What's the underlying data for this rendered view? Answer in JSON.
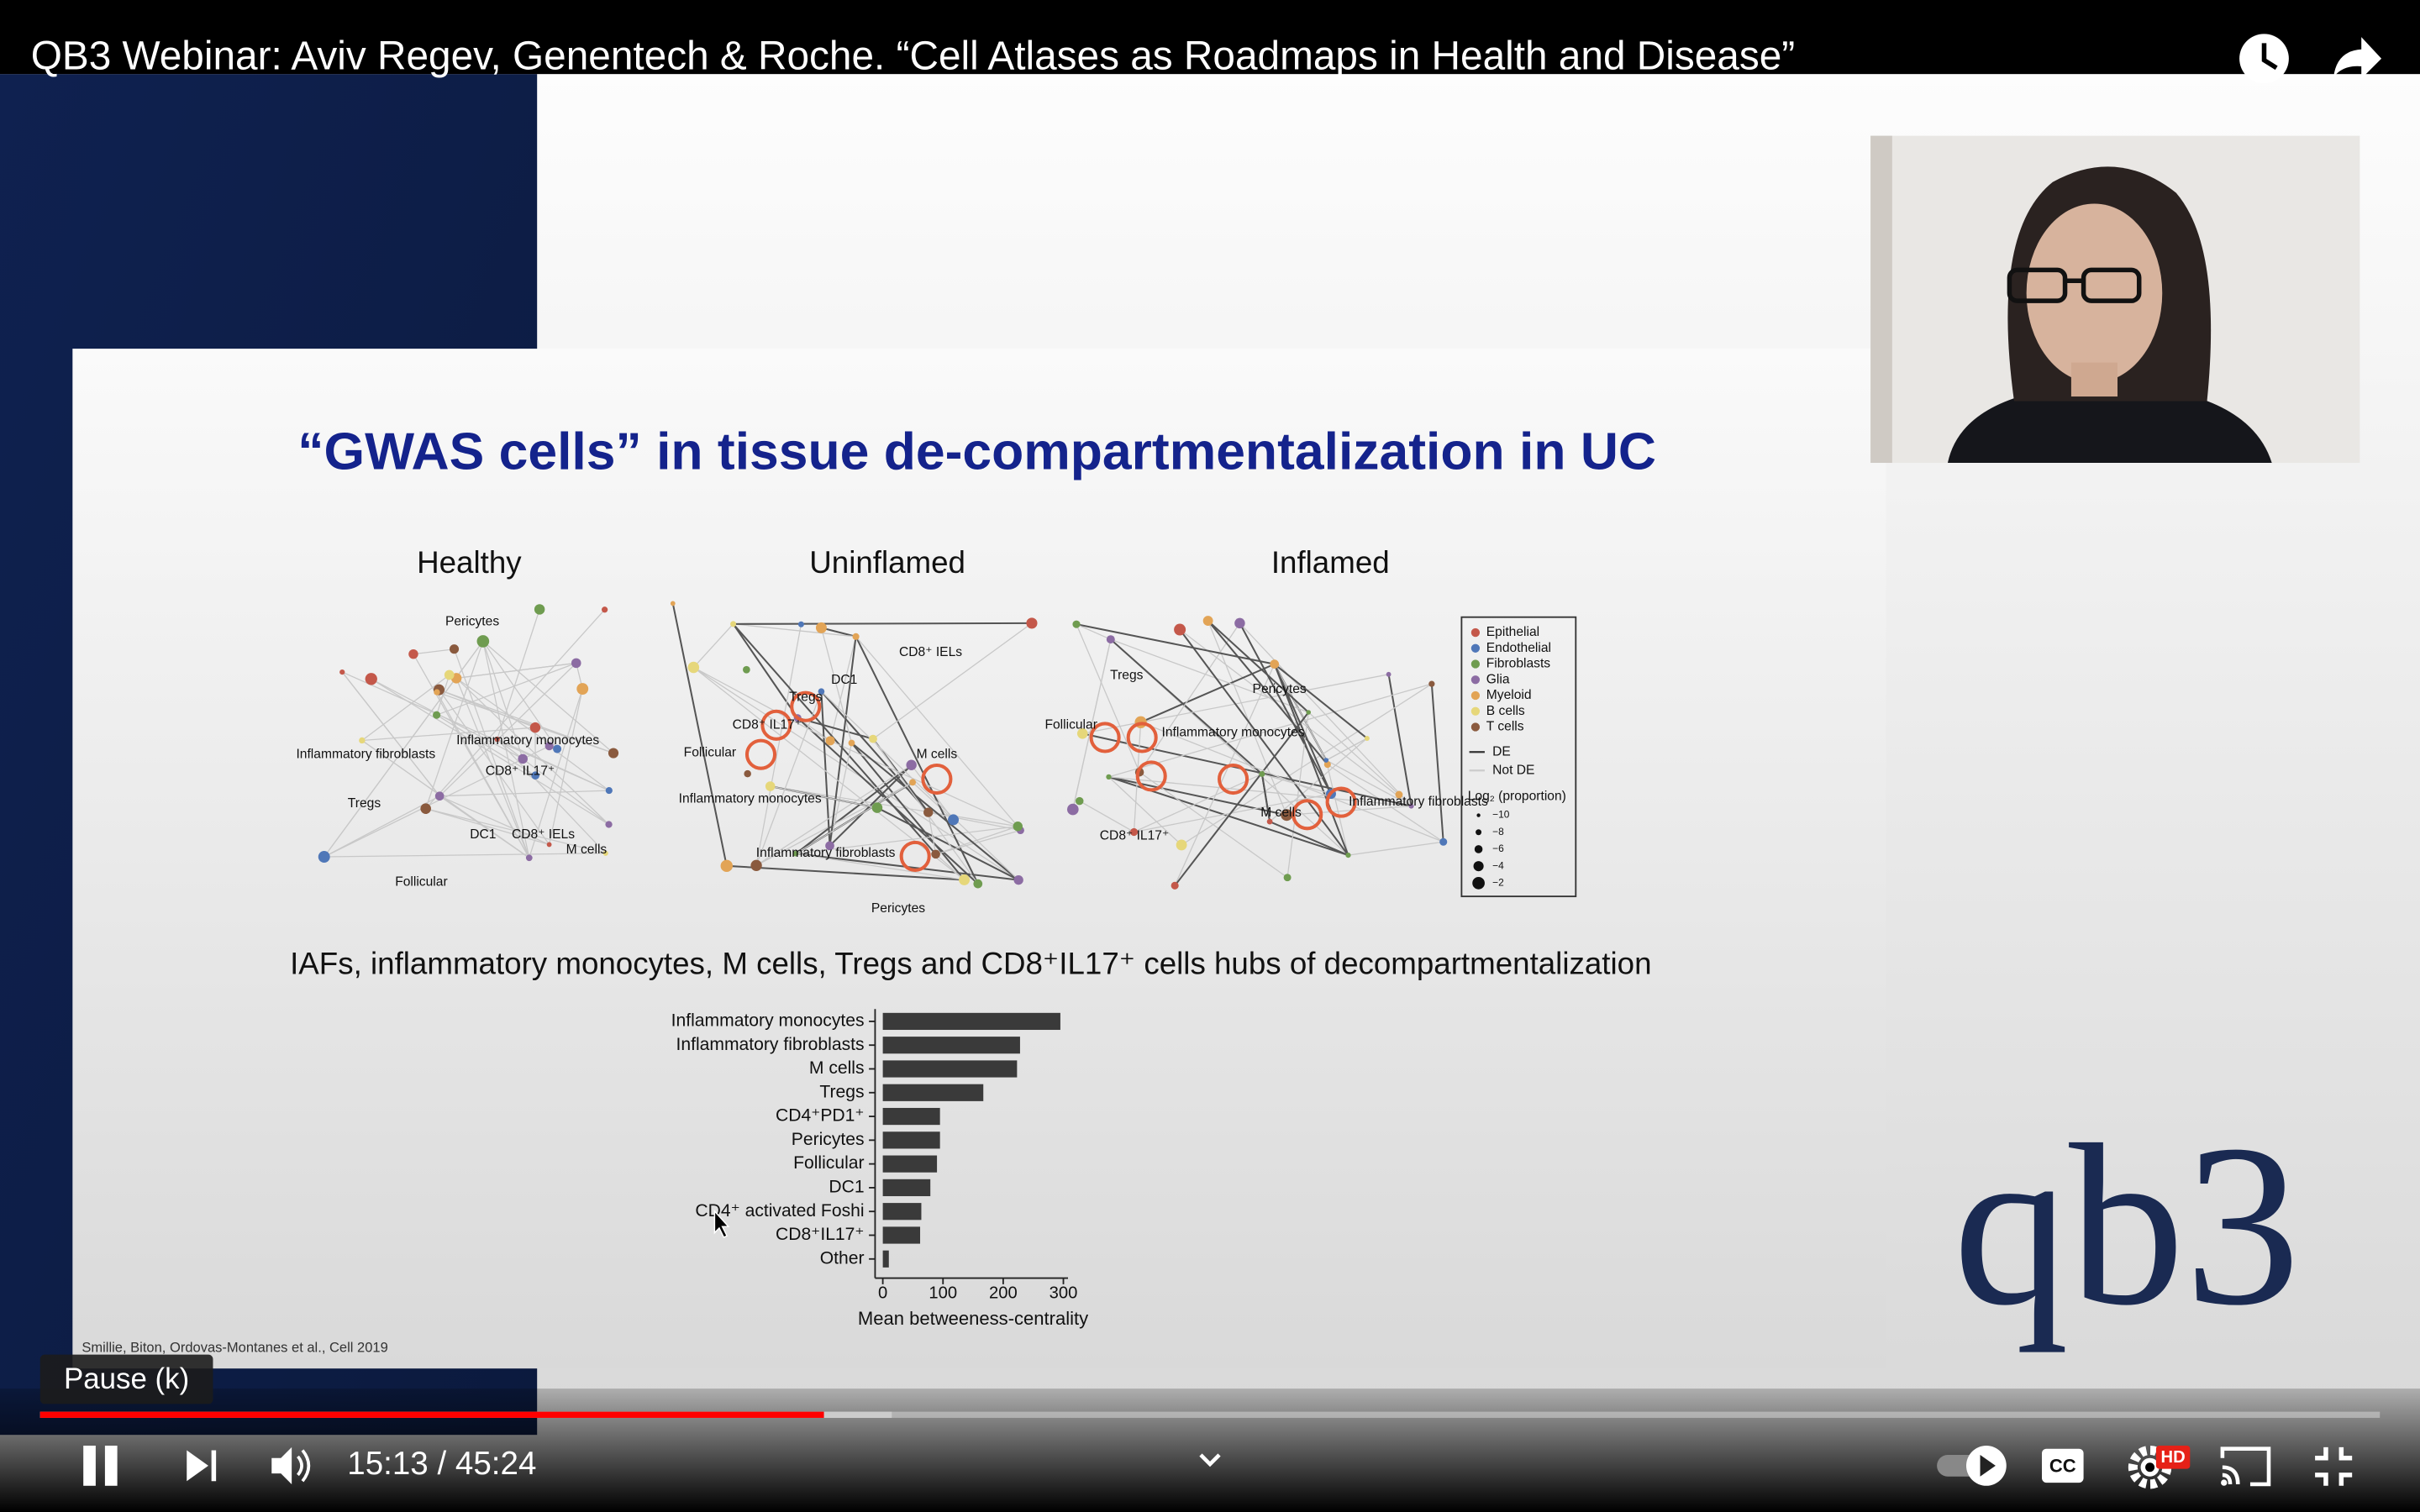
{
  "header": {
    "title": "QB3 Webinar: Aviv Regev, Genentech & Roche. “Cell Atlases as Roadmaps in Health and Disease”"
  },
  "slide": {
    "title": "“GWAS cells” in tissue de-compartmentalization in UC",
    "panels": [
      {
        "title": "Healthy",
        "labels": [
          "Pericytes",
          "Inflammatory fibroblasts",
          "Inflammatory monocytes",
          "CD8⁺ IL17⁺",
          "Tregs",
          "DC1",
          "CD8⁺ IELs",
          "M cells",
          "Follicular"
        ]
      },
      {
        "title": "Uninflamed",
        "labels": [
          "CD8⁺ IELs",
          "DC1",
          "Tregs",
          "CD8⁺ IL17⁺",
          "Follicular",
          "Inflammatory monocytes",
          "M cells",
          "Inflammatory fibroblasts",
          "Pericytes"
        ]
      },
      {
        "title": "Inflamed",
        "labels": [
          "Tregs",
          "Pericytes",
          "Follicular",
          "Inflammatory monocytes",
          "CD8⁺ IL17⁺",
          "M cells",
          "Inflammatory fibroblasts"
        ]
      }
    ],
    "legend": {
      "cell_types": [
        {
          "name": "Epithelial",
          "color": "#c4584a"
        },
        {
          "name": "Endothelial",
          "color": "#4f77b8"
        },
        {
          "name": "Fibroblasts",
          "color": "#6f9c50"
        },
        {
          "name": "Glia",
          "color": "#8c6ca3"
        },
        {
          "name": "Myeloid",
          "color": "#e2a456"
        },
        {
          "name": "B cells",
          "color": "#e6d77a"
        },
        {
          "name": "T cells",
          "color": "#8a5a3e"
        }
      ],
      "edges": [
        "DE",
        "Not DE"
      ],
      "size_title": "Log₂ (proportion)",
      "sizes": [
        {
          "value": -10,
          "label": "−10"
        },
        {
          "value": -8,
          "label": "−8"
        },
        {
          "value": -6,
          "label": "−6"
        },
        {
          "value": -4,
          "label": "−4"
        },
        {
          "value": -2,
          "label": "−2"
        }
      ]
    },
    "subtitle": "IAFs, inflammatory monocytes, M cells, Tregs and CD8⁺IL17⁺ cells hubs of decompartmentalization",
    "citation": "Smillie, Biton, Ordovas-Montanes et al., Cell 2019"
  },
  "chart_data": {
    "type": "bar",
    "orientation": "horizontal",
    "categories": [
      "Inflammatory monocytes",
      "Inflammatory fibroblasts",
      "M cells",
      "Tregs",
      "CD4⁺PD1⁺",
      "Pericytes",
      "Follicular",
      "DC1",
      "CD4⁺ activated Foshi",
      "CD8⁺IL17⁺",
      "Other"
    ],
    "values": [
      295,
      228,
      223,
      167,
      95,
      95,
      90,
      79,
      64,
      62,
      10
    ],
    "color": "#3a3a3a",
    "xlim": [
      0,
      300
    ],
    "xticks": [
      0,
      100,
      200,
      300
    ],
    "xlabel": "Mean betweeness-centrality"
  },
  "logo": "qb3",
  "player": {
    "tooltip": "Pause (k)",
    "time": "15:13 / 45:24",
    "cc": "CC",
    "hd": "HD",
    "played": 0.335,
    "buffered": 0.364
  }
}
